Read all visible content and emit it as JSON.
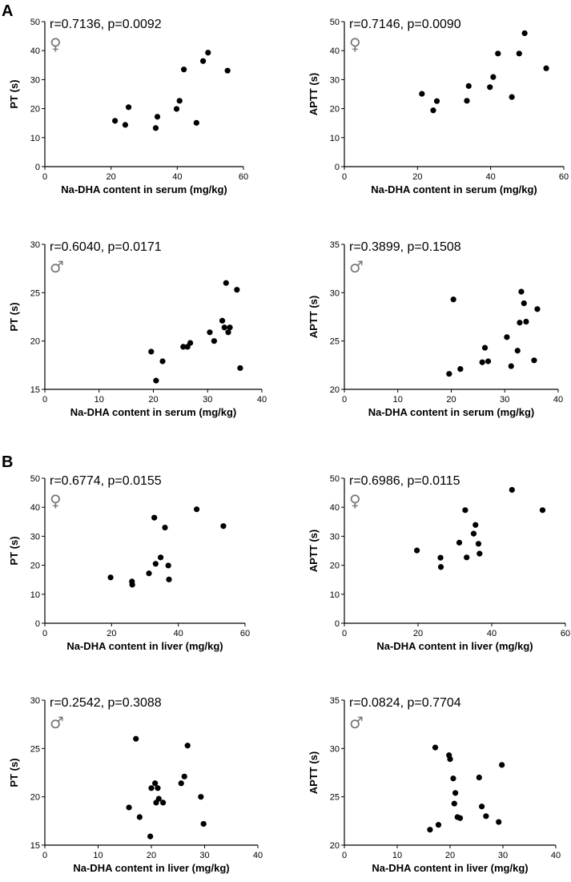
{
  "figure": {
    "panel_labels": [
      "A",
      "B"
    ]
  },
  "chart_data": [
    {
      "type": "scatter",
      "section": "A",
      "title": "r=0.7136, p=0.0092",
      "sex_symbol": "♀",
      "xlabel": "Na-DHA content in serum (mg/kg)",
      "ylabel": "PT (s)",
      "xlim": [
        0,
        60
      ],
      "ylim": [
        0,
        50
      ],
      "xticks": [
        0,
        20,
        40,
        60
      ],
      "yticks": [
        0,
        10,
        20,
        30,
        40,
        50
      ],
      "x": [
        21.2,
        24.3,
        25.3,
        33.5,
        34.0,
        39.8,
        40.7,
        42.0,
        45.8,
        47.8,
        49.3,
        55.2
      ],
      "y": [
        15.8,
        14.4,
        20.5,
        13.3,
        17.2,
        19.9,
        22.7,
        33.5,
        15.1,
        36.4,
        39.3,
        33.1
      ]
    },
    {
      "type": "scatter",
      "section": "A",
      "title": "r=0.7146, p=0.0090",
      "sex_symbol": "♀",
      "xlabel": "Na-DHA content in serum (mg/kg)",
      "ylabel": "APTT (s)",
      "xlim": [
        0,
        60
      ],
      "ylim": [
        0,
        50
      ],
      "xticks": [
        0,
        20,
        40,
        60
      ],
      "yticks": [
        0,
        10,
        20,
        30,
        40,
        50
      ],
      "x": [
        21.2,
        24.3,
        25.3,
        33.5,
        34.0,
        39.8,
        40.7,
        42.0,
        45.8,
        47.8,
        49.3,
        55.2
      ],
      "y": [
        25.1,
        19.4,
        22.6,
        22.7,
        27.8,
        27.4,
        30.9,
        39.0,
        24.0,
        39.0,
        46.0,
        33.9
      ]
    },
    {
      "type": "scatter",
      "section": "A",
      "title": "r=0.6040, p=0.0171",
      "sex_symbol": "♂",
      "xlabel": "Na-DHA content in serum (mg/kg)",
      "ylabel": "PT (s)",
      "xlim": [
        0,
        40
      ],
      "ylim": [
        15,
        30
      ],
      "xticks": [
        0,
        10,
        20,
        30,
        40
      ],
      "yticks": [
        15,
        20,
        25,
        30
      ],
      "x": [
        19.6,
        20.5,
        21.7,
        25.5,
        26.3,
        26.8,
        30.4,
        31.2,
        32.7,
        33.1,
        33.4,
        33.8,
        34.1,
        35.4,
        36.0
      ],
      "y": [
        18.9,
        15.9,
        17.9,
        19.4,
        19.4,
        19.8,
        20.9,
        20.0,
        22.1,
        21.4,
        26.0,
        20.9,
        21.4,
        25.3,
        17.2
      ]
    },
    {
      "type": "scatter",
      "section": "A",
      "title": "r=0.3899, p=0.1508",
      "sex_symbol": "♂",
      "xlabel": "Na-DHA content in serum (mg/kg)",
      "ylabel": "APTT (s)",
      "xlim": [
        0,
        40
      ],
      "ylim": [
        20,
        35
      ],
      "xticks": [
        0,
        10,
        20,
        30,
        40
      ],
      "yticks": [
        20,
        25,
        30,
        35
      ],
      "x": [
        19.6,
        20.4,
        21.7,
        25.8,
        26.3,
        26.9,
        30.4,
        31.2,
        32.4,
        32.8,
        33.1,
        33.6,
        34.0,
        35.5,
        36.1
      ],
      "y": [
        21.6,
        29.3,
        22.1,
        22.8,
        24.3,
        22.9,
        25.4,
        22.4,
        24.0,
        26.9,
        30.1,
        28.9,
        27.0,
        23.0,
        28.3
      ]
    },
    {
      "type": "scatter",
      "section": "B",
      "title": "r=0.6774, p=0.0155",
      "sex_symbol": "♀",
      "xlabel": "Na-DHA content in liver (mg/kg)",
      "ylabel": "PT (s)",
      "xlim": [
        0,
        60
      ],
      "ylim": [
        0,
        50
      ],
      "xticks": [
        0,
        20,
        40,
        60
      ],
      "yticks": [
        0,
        10,
        20,
        30,
        40,
        50
      ],
      "x": [
        19.7,
        26.1,
        26.2,
        31.2,
        32.8,
        33.2,
        34.7,
        36.0,
        37.0,
        37.2,
        45.5,
        53.5
      ],
      "y": [
        15.8,
        14.4,
        13.3,
        17.2,
        36.4,
        20.5,
        22.7,
        33.0,
        19.9,
        15.1,
        39.3,
        33.5
      ]
    },
    {
      "type": "scatter",
      "section": "B",
      "title": "r=0.6986, p=0.0115",
      "sex_symbol": "♀",
      "xlabel": "Na-DHA content in liver (mg/kg)",
      "ylabel": "APTT (s)",
      "xlim": [
        0,
        60
      ],
      "ylim": [
        0,
        50
      ],
      "xticks": [
        0,
        20,
        40,
        60
      ],
      "yticks": [
        0,
        10,
        20,
        30,
        40,
        50
      ],
      "x": [
        19.7,
        26.1,
        26.2,
        31.2,
        32.8,
        33.2,
        35.1,
        35.6,
        36.4,
        36.7,
        45.5,
        53.8
      ],
      "y": [
        25.1,
        22.6,
        19.4,
        27.8,
        39.0,
        22.7,
        30.9,
        33.9,
        27.4,
        24.0,
        46.0,
        39.0
      ]
    },
    {
      "type": "scatter",
      "section": "B",
      "title": "r=0.2542, p=0.3088",
      "sex_symbol": "♂",
      "xlabel": "Na-DHA content in liver (mg/kg)",
      "ylabel": "PT (s)",
      "xlim": [
        0,
        40
      ],
      "ylim": [
        15,
        30
      ],
      "xticks": [
        0,
        10,
        20,
        30,
        40
      ],
      "yticks": [
        15,
        20,
        25,
        30
      ],
      "x": [
        15.8,
        17.1,
        17.8,
        19.8,
        20.0,
        20.7,
        20.9,
        21.2,
        21.4,
        22.2,
        25.6,
        26.2,
        26.8,
        29.3,
        29.8
      ],
      "y": [
        18.9,
        26.0,
        17.9,
        15.9,
        20.9,
        21.4,
        19.4,
        20.9,
        19.8,
        19.4,
        21.4,
        22.1,
        25.3,
        20.0,
        17.2
      ]
    },
    {
      "type": "scatter",
      "section": "B",
      "title": "r=0.0824, p=0.7704",
      "sex_symbol": "♂",
      "xlabel": "Na-DHA content in liver (mg/kg)",
      "ylabel": "APTT (s)",
      "xlim": [
        0,
        40
      ],
      "ylim": [
        20,
        35
      ],
      "xticks": [
        0,
        10,
        20,
        30,
        40
      ],
      "yticks": [
        20,
        25,
        30,
        35
      ],
      "x": [
        16.2,
        17.2,
        17.8,
        19.8,
        20.0,
        20.6,
        20.8,
        21.0,
        21.4,
        21.9,
        25.5,
        26.0,
        26.8,
        29.2,
        29.8
      ],
      "y": [
        21.6,
        30.1,
        22.1,
        29.3,
        28.9,
        26.9,
        24.3,
        25.4,
        22.9,
        22.8,
        27.0,
        24.0,
        23.0,
        22.4,
        28.3
      ]
    }
  ]
}
